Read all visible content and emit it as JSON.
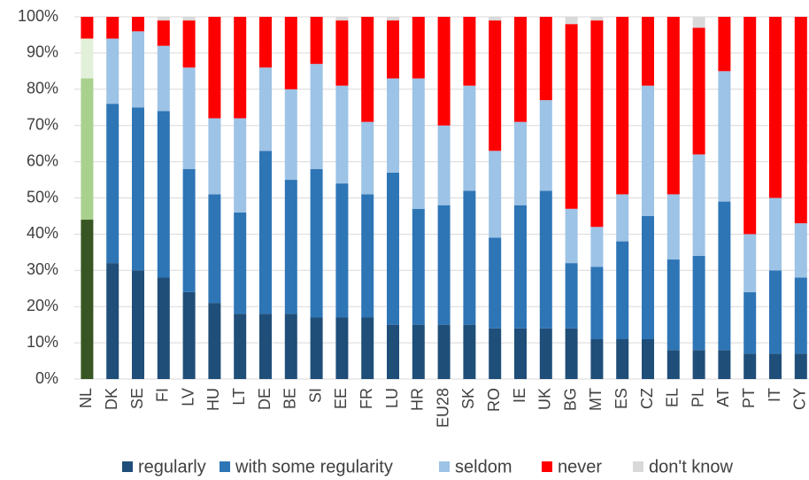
{
  "chart_data": {
    "type": "stacked_bar",
    "categories": [
      "NL",
      "DK",
      "SE",
      "FI",
      "LV",
      "HU",
      "LT",
      "DE",
      "BE",
      "SI",
      "EE",
      "FR",
      "LU",
      "HR",
      "EU28",
      "SK",
      "RO",
      "IE",
      "UK",
      "BG",
      "MT",
      "ES",
      "CZ",
      "EL",
      "PL",
      "AT",
      "PT",
      "IT",
      "CY"
    ],
    "series": [
      {
        "name": "regularly",
        "color": "#1f4e79",
        "highlight_color": "#375623",
        "values": [
          44,
          32,
          30,
          28,
          24,
          21,
          18,
          18,
          18,
          17,
          17,
          17,
          15,
          15,
          15,
          15,
          14,
          14,
          14,
          14,
          11,
          11,
          11,
          8,
          8,
          8,
          7,
          7,
          7
        ]
      },
      {
        "name": "with some regularity",
        "color": "#2e75b6",
        "highlight_color": "#a9d18e",
        "values": [
          39,
          44,
          45,
          46,
          34,
          30,
          28,
          45,
          37,
          41,
          37,
          34,
          42,
          32,
          33,
          37,
          25,
          34,
          38,
          18,
          20,
          27,
          34,
          25,
          26,
          41,
          17,
          23,
          21
        ]
      },
      {
        "name": "seldom",
        "color": "#9dc3e6",
        "highlight_color": "#e2f0d9",
        "values": [
          11,
          18,
          21,
          18,
          28,
          21,
          26,
          23,
          25,
          29,
          27,
          20,
          26,
          36,
          22,
          29,
          24,
          23,
          25,
          15,
          11,
          13,
          36,
          18,
          28,
          36,
          16,
          20,
          15
        ]
      },
      {
        "name": "never",
        "color": "#ff0000",
        "highlight_color": "#ff0000",
        "values": [
          6,
          6,
          4,
          7,
          13,
          28,
          28,
          14,
          20,
          13,
          18,
          29,
          16,
          17,
          30,
          19,
          36,
          29,
          23,
          51,
          57,
          49,
          19,
          49,
          35,
          15,
          60,
          50,
          57
        ]
      },
      {
        "name": "don't know",
        "color": "#d9d9d9",
        "highlight_color": "#d9d9d9",
        "values": [
          0,
          0,
          0,
          1,
          1,
          0,
          0,
          0,
          0,
          0,
          1,
          0,
          1,
          0,
          0,
          0,
          1,
          0,
          0,
          2,
          1,
          0,
          0,
          0,
          3,
          0,
          0,
          0,
          0
        ]
      }
    ],
    "highlight_index": 0,
    "ylim": [
      0,
      100
    ],
    "yticks": [
      {
        "value": 0,
        "label": "0%"
      },
      {
        "value": 10,
        "label": "10%"
      },
      {
        "value": 20,
        "label": "20%"
      },
      {
        "value": 30,
        "label": "30%"
      },
      {
        "value": 40,
        "label": "40%"
      },
      {
        "value": 50,
        "label": "50%"
      },
      {
        "value": 60,
        "label": "60%"
      },
      {
        "value": 70,
        "label": "70%"
      },
      {
        "value": 80,
        "label": "80%"
      },
      {
        "value": 90,
        "label": "90%"
      },
      {
        "value": 100,
        "label": "100%"
      }
    ],
    "grid": true,
    "legend": "bottom"
  }
}
